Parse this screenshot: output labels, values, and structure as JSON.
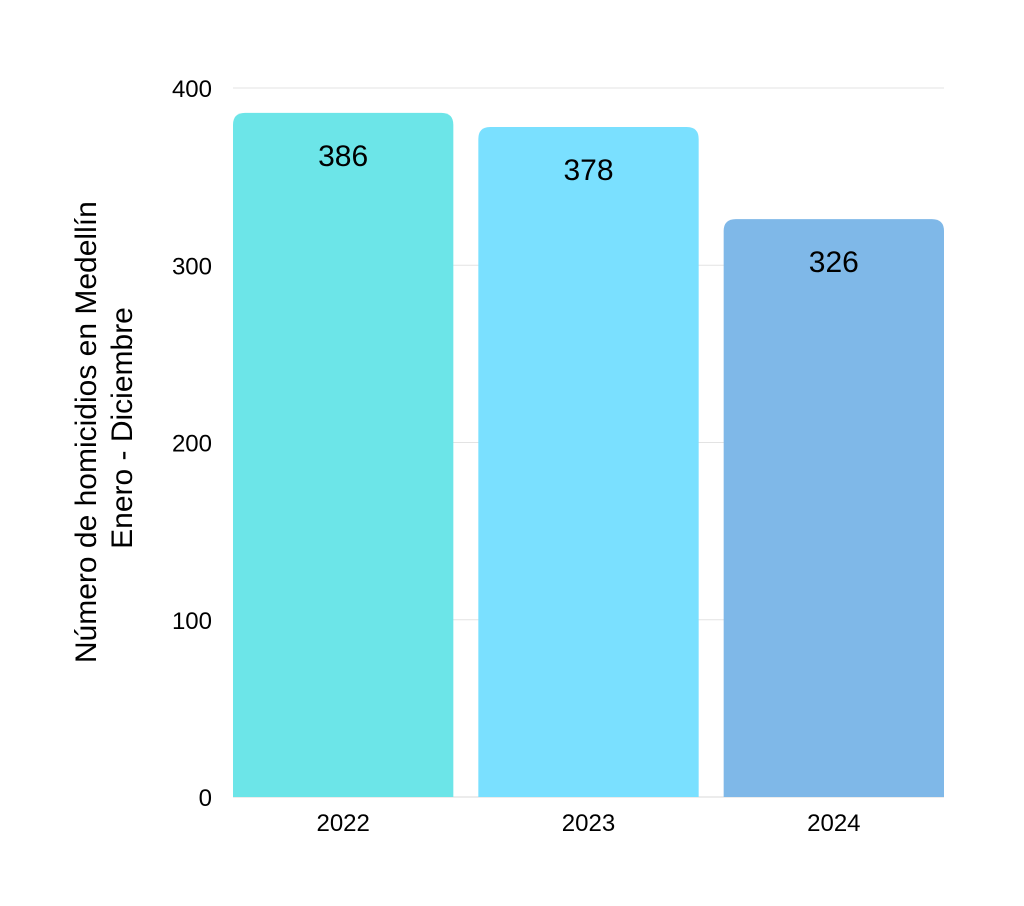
{
  "chart_data": {
    "type": "bar",
    "categories": [
      "2022",
      "2023",
      "2024"
    ],
    "values": [
      386,
      378,
      326
    ],
    "data_labels": [
      "386",
      "378",
      "326"
    ],
    "title": "",
    "xlabel": "",
    "ylabel_lines": [
      "Número de homicidios en Medellín",
      "Enero - Diciembre"
    ],
    "ylim": [
      0,
      400
    ],
    "yticks": [
      0,
      100,
      200,
      300,
      400
    ],
    "ytick_labels": [
      "0",
      "100",
      "200",
      "300",
      "400"
    ],
    "grid": true,
    "legend": "none",
    "colors": [
      "#6ce5e8",
      "#7ae0ff",
      "#7fb8e8"
    ]
  }
}
